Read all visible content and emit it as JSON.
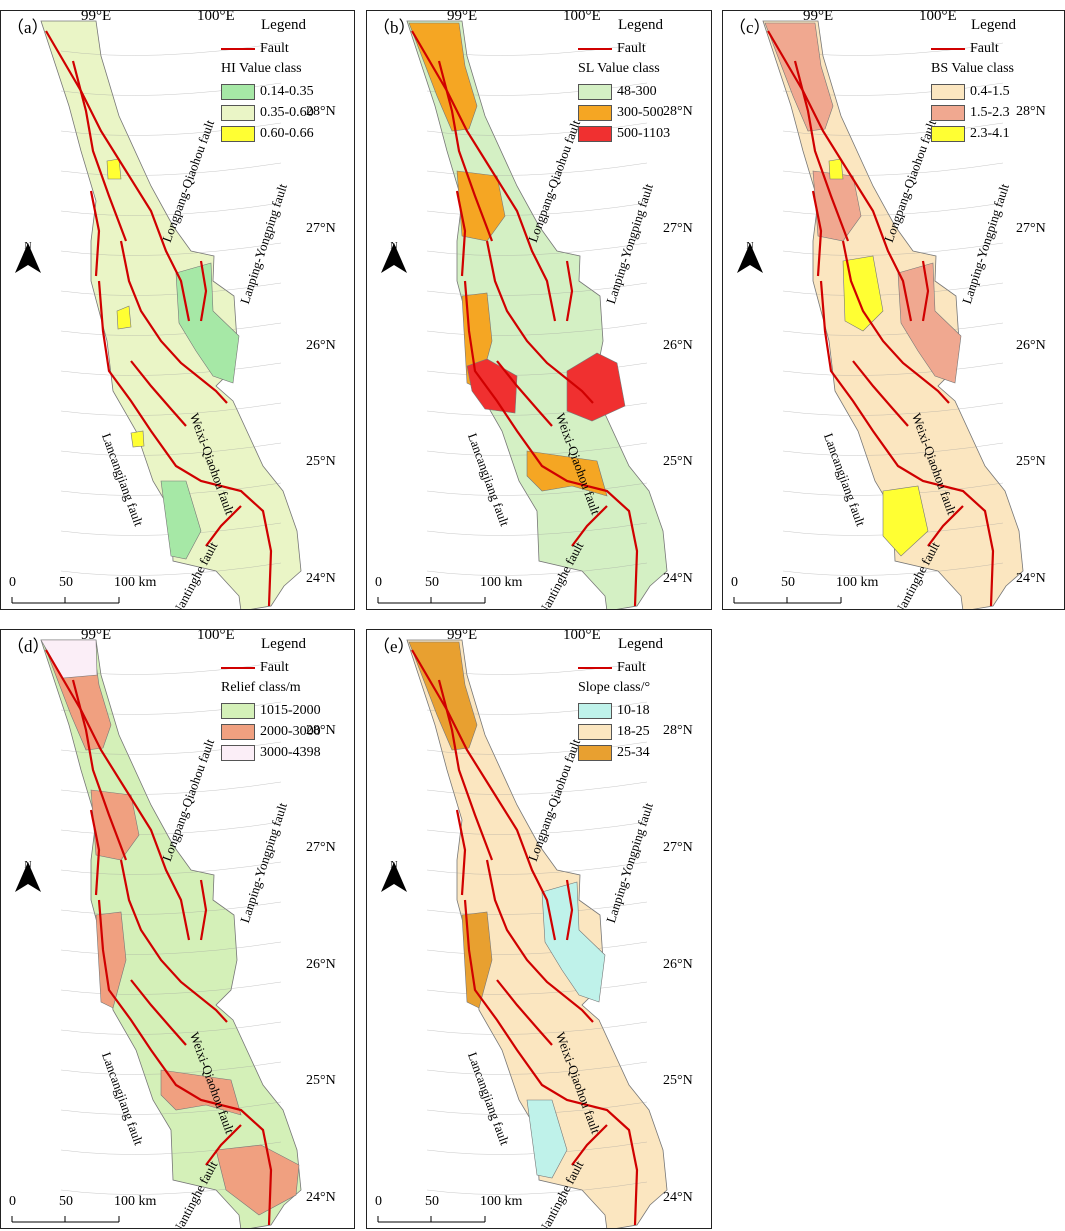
{
  "common": {
    "legend_title": "Legend",
    "fault_label": "Fault",
    "lon_labels": [
      "99°E",
      "100°E"
    ],
    "lat_labels": [
      "28°N",
      "27°N",
      "26°N",
      "25°N",
      "24°N"
    ],
    "north": "N",
    "scale_ticks": [
      "0",
      "50",
      "100 km"
    ],
    "fault_names": {
      "longpang": "Longpang-Qiaohou fault",
      "lanping": "Lanping-Yongping fault",
      "lancang": "Lancangjiang fault",
      "weixi": "Weixi-Qiaohou fault",
      "nantinghe": "Nantinghe fault"
    },
    "fault_color": "#d00000"
  },
  "panels": [
    {
      "id": "a",
      "label": "（a）",
      "class_title": "HI Value class",
      "classes": [
        {
          "range": "0.14-0.35",
          "color": "#a6e8a6"
        },
        {
          "range": "0.35-0.60",
          "color": "#eaf5c6"
        },
        {
          "range": "0.60-0.66",
          "color": "#ffff33"
        }
      ],
      "base": 1,
      "accents": [
        {
          "cls": 0,
          "shape": "east"
        },
        {
          "cls": 0,
          "shape": "south"
        },
        {
          "cls": 2,
          "shape": "spot1"
        },
        {
          "cls": 2,
          "shape": "spot2"
        },
        {
          "cls": 2,
          "shape": "spot3"
        }
      ]
    },
    {
      "id": "b",
      "label": "（b）",
      "class_title": "SL Value class",
      "classes": [
        {
          "range": "48-300",
          "color": "#d4f0c4"
        },
        {
          "range": "300-500",
          "color": "#f5a623"
        },
        {
          "range": "500-1103",
          "color": "#f03030"
        }
      ],
      "base": 0,
      "accents": [
        {
          "cls": 1,
          "shape": "north"
        },
        {
          "cls": 1,
          "shape": "mid"
        },
        {
          "cls": 1,
          "shape": "west"
        },
        {
          "cls": 1,
          "shape": "southband"
        },
        {
          "cls": 2,
          "shape": "redwest"
        },
        {
          "cls": 2,
          "shape": "redeast"
        }
      ]
    },
    {
      "id": "c",
      "label": "（c）",
      "class_title": "BS Value class",
      "classes": [
        {
          "range": "0.4-1.5",
          "color": "#fbe6c0"
        },
        {
          "range": "1.5-2.3",
          "color": "#f0a890"
        },
        {
          "range": "2.3-4.1",
          "color": "#ffff33"
        }
      ],
      "base": 0,
      "accents": [
        {
          "cls": 1,
          "shape": "north"
        },
        {
          "cls": 1,
          "shape": "mid"
        },
        {
          "cls": 1,
          "shape": "east"
        },
        {
          "cls": 2,
          "shape": "spot1"
        },
        {
          "cls": 2,
          "shape": "ybig"
        },
        {
          "cls": 2,
          "shape": "ysouth"
        }
      ]
    },
    {
      "id": "d",
      "label": "（d）",
      "class_title": "Relief class/m",
      "classes": [
        {
          "range": "1015-2000",
          "color": "#d4f0b8"
        },
        {
          "range": "2000-3000",
          "color": "#f0a080"
        },
        {
          "range": "3000-4398",
          "color": "#fbeef7"
        }
      ],
      "base": 0,
      "accents": [
        {
          "cls": 1,
          "shape": "north"
        },
        {
          "cls": 1,
          "shape": "mid"
        },
        {
          "cls": 1,
          "shape": "west"
        },
        {
          "cls": 1,
          "shape": "southband"
        },
        {
          "cls": 1,
          "shape": "southeast"
        },
        {
          "cls": 2,
          "shape": "tip"
        }
      ]
    },
    {
      "id": "e",
      "label": "（e）",
      "class_title": "Slope class/°",
      "classes": [
        {
          "range": "10-18",
          "color": "#bff2ea"
        },
        {
          "range": "18-25",
          "color": "#fbe6c0"
        },
        {
          "range": "25-34",
          "color": "#e8a030"
        }
      ],
      "base": 1,
      "accents": [
        {
          "cls": 2,
          "shape": "north"
        },
        {
          "cls": 2,
          "shape": "west"
        },
        {
          "cls": 0,
          "shape": "east"
        },
        {
          "cls": 0,
          "shape": "south"
        }
      ]
    }
  ]
}
